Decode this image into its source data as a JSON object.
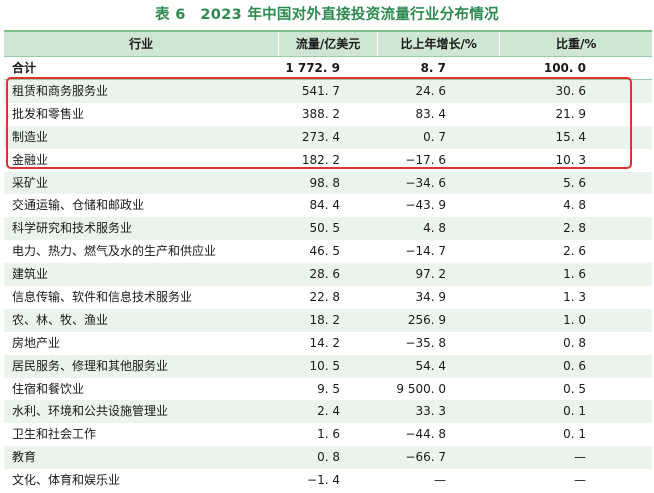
{
  "title": "表 6　2023 年中国对外直接投资流量行业分布情况",
  "header": {
    "industry": "行业",
    "flow": "流量/亿美元",
    "growth": "比上年增长/%",
    "share": "比重/%"
  },
  "total": {
    "industry": "合计",
    "flow": "1 772. 9",
    "growth": "8. 7",
    "share": "100. 0"
  },
  "rows": [
    {
      "industry": "租赁和商务服务业",
      "flow": "541. 7",
      "growth": "24. 6",
      "share": "30. 6"
    },
    {
      "industry": "批发和零售业",
      "flow": "388. 2",
      "growth": "83. 4",
      "share": "21. 9"
    },
    {
      "industry": "制造业",
      "flow": "273. 4",
      "growth": "0. 7",
      "share": "15. 4"
    },
    {
      "industry": "金融业",
      "flow": "182. 2",
      "growth": "−17. 6",
      "share": "10. 3"
    },
    {
      "industry": "采矿业",
      "flow": "98. 8",
      "growth": "−34. 6",
      "share": "5. 6"
    },
    {
      "industry": "交通运输、仓储和邮政业",
      "flow": "84. 4",
      "growth": "−43. 9",
      "share": "4. 8"
    },
    {
      "industry": "科学研究和技术服务业",
      "flow": "50. 5",
      "growth": "4. 8",
      "share": "2. 8"
    },
    {
      "industry": "电力、热力、燃气及水的生产和供应业",
      "flow": "46. 5",
      "growth": "−14. 7",
      "share": "2. 6"
    },
    {
      "industry": "建筑业",
      "flow": "28. 6",
      "growth": "97. 2",
      "share": "1. 6"
    },
    {
      "industry": "信息传输、软件和信息技术服务业",
      "flow": "22. 8",
      "growth": "34. 9",
      "share": "1. 3"
    },
    {
      "industry": "农、林、牧、渔业",
      "flow": "18. 2",
      "growth": "256. 9",
      "share": "1. 0"
    },
    {
      "industry": "房地产业",
      "flow": "14. 2",
      "growth": "−35. 8",
      "share": "0. 8"
    },
    {
      "industry": "居民服务、修理和其他服务业",
      "flow": "10. 5",
      "growth": "54. 4",
      "share": "0. 6"
    },
    {
      "industry": "住宿和餐饮业",
      "flow": "9. 5",
      "growth": "9 500. 0",
      "share": "0. 5"
    },
    {
      "industry": "水利、环境和公共设施管理业",
      "flow": "2. 4",
      "growth": "33. 3",
      "share": "0. 1"
    },
    {
      "industry": "卫生和社会工作",
      "flow": "1. 6",
      "growth": "−44. 8",
      "share": "0. 1"
    },
    {
      "industry": "教育",
      "flow": "0. 8",
      "growth": "−66. 7",
      "share": "—"
    },
    {
      "industry": "文化、体育和娱乐业",
      "flow": "−1. 4",
      "growth": "—",
      "share": "—"
    }
  ],
  "highlight_color": "#e3302f"
}
